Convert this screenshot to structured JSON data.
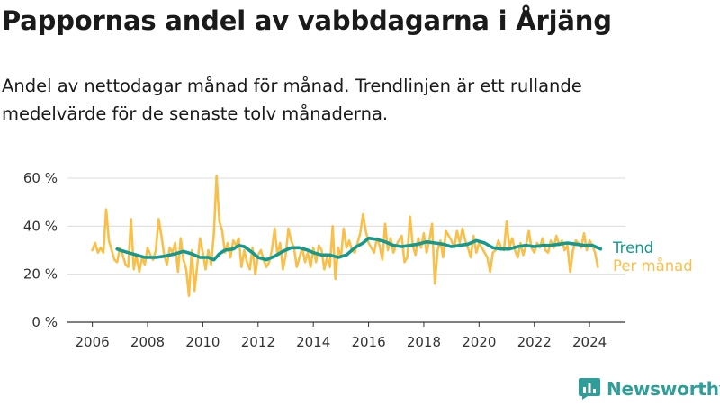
{
  "title": "Pappornas andel av vabbdagarna i Årjäng",
  "subtitle": "Andel av nettodagar månad för månad. Trendlinjen är ett rullande medelvärde för de senaste tolv månaderna.",
  "brand": {
    "name": "Newsworthy",
    "icon": "newsworthy-logo-icon",
    "color": "#2f9e99"
  },
  "chart_data": {
    "type": "line",
    "x_axis": {
      "range": [
        2005.1,
        2025.3
      ],
      "ticks": [
        2006,
        2008,
        2010,
        2012,
        2014,
        2016,
        2018,
        2020,
        2022,
        2024
      ],
      "tick_labels": [
        "2006",
        "2008",
        "2010",
        "2012",
        "2014",
        "2016",
        "2018",
        "2020",
        "2022",
        "2024"
      ]
    },
    "y_axis": {
      "range": [
        0,
        63
      ],
      "ticks": [
        0,
        20,
        40,
        60
      ],
      "tick_labels": [
        "0 %",
        "20 %",
        "40 %",
        "60 %"
      ]
    },
    "grid": true,
    "legend_placement": "right-end",
    "series": [
      {
        "name": "Trend",
        "color": "#14998f",
        "points": [
          [
            2006.9,
            30.5
          ],
          [
            2007.0,
            30
          ],
          [
            2007.3,
            29
          ],
          [
            2007.6,
            28
          ],
          [
            2007.9,
            27
          ],
          [
            2008.3,
            27
          ],
          [
            2008.6,
            27.5
          ],
          [
            2009.0,
            28.5
          ],
          [
            2009.3,
            29.5
          ],
          [
            2009.6,
            28.5
          ],
          [
            2009.9,
            27
          ],
          [
            2010.2,
            27
          ],
          [
            2010.4,
            26
          ],
          [
            2010.6,
            28.5
          ],
          [
            2010.8,
            30
          ],
          [
            2011.1,
            30.5
          ],
          [
            2011.3,
            32
          ],
          [
            2011.5,
            31.5
          ],
          [
            2011.8,
            29
          ],
          [
            2012.0,
            27
          ],
          [
            2012.3,
            26
          ],
          [
            2012.6,
            27.5
          ],
          [
            2012.9,
            29.5
          ],
          [
            2013.2,
            31
          ],
          [
            2013.5,
            31
          ],
          [
            2013.8,
            30
          ],
          [
            2014.0,
            29
          ],
          [
            2014.3,
            28
          ],
          [
            2014.6,
            28
          ],
          [
            2014.9,
            27
          ],
          [
            2015.2,
            28
          ],
          [
            2015.5,
            31
          ],
          [
            2015.8,
            33
          ],
          [
            2016.0,
            35
          ],
          [
            2016.3,
            34.5
          ],
          [
            2016.6,
            33.5
          ],
          [
            2016.9,
            32
          ],
          [
            2017.2,
            31.5
          ],
          [
            2017.5,
            32
          ],
          [
            2017.8,
            32.5
          ],
          [
            2018.1,
            33.5
          ],
          [
            2018.4,
            33
          ],
          [
            2018.7,
            32.5
          ],
          [
            2019.0,
            31.5
          ],
          [
            2019.3,
            32
          ],
          [
            2019.6,
            32.5
          ],
          [
            2019.9,
            34
          ],
          [
            2020.2,
            33
          ],
          [
            2020.5,
            31
          ],
          [
            2020.8,
            30.5
          ],
          [
            2021.1,
            30.5
          ],
          [
            2021.4,
            31.5
          ],
          [
            2021.7,
            32
          ],
          [
            2022.0,
            31.5
          ],
          [
            2022.3,
            32
          ],
          [
            2022.6,
            32
          ],
          [
            2022.9,
            32.5
          ],
          [
            2023.2,
            33
          ],
          [
            2023.5,
            32.5
          ],
          [
            2023.8,
            32
          ],
          [
            2024.1,
            32
          ],
          [
            2024.4,
            30.5
          ]
        ]
      },
      {
        "name": "Per månad",
        "color": "#f8c04a",
        "points": [
          [
            2006.0,
            30
          ],
          [
            2006.1,
            33
          ],
          [
            2006.2,
            29
          ],
          [
            2006.3,
            31
          ],
          [
            2006.4,
            29
          ],
          [
            2006.5,
            47
          ],
          [
            2006.6,
            34
          ],
          [
            2006.7,
            30
          ],
          [
            2006.8,
            26
          ],
          [
            2006.9,
            25
          ],
          [
            2007.0,
            31
          ],
          [
            2007.1,
            28
          ],
          [
            2007.2,
            24
          ],
          [
            2007.3,
            23
          ],
          [
            2007.4,
            43
          ],
          [
            2007.5,
            22
          ],
          [
            2007.6,
            28
          ],
          [
            2007.7,
            21
          ],
          [
            2007.8,
            27
          ],
          [
            2007.9,
            24
          ],
          [
            2008.0,
            31
          ],
          [
            2008.1,
            28
          ],
          [
            2008.2,
            26
          ],
          [
            2008.3,
            30
          ],
          [
            2008.4,
            43
          ],
          [
            2008.5,
            36
          ],
          [
            2008.6,
            28
          ],
          [
            2008.7,
            24
          ],
          [
            2008.8,
            31
          ],
          [
            2008.9,
            29
          ],
          [
            2009.0,
            33
          ],
          [
            2009.1,
            21
          ],
          [
            2009.2,
            35
          ],
          [
            2009.3,
            26
          ],
          [
            2009.4,
            22
          ],
          [
            2009.5,
            11
          ],
          [
            2009.6,
            30
          ],
          [
            2009.7,
            13
          ],
          [
            2009.8,
            24
          ],
          [
            2009.9,
            35
          ],
          [
            2010.0,
            29
          ],
          [
            2010.1,
            22
          ],
          [
            2010.2,
            30
          ],
          [
            2010.3,
            24
          ],
          [
            2010.4,
            37
          ],
          [
            2010.5,
            61
          ],
          [
            2010.6,
            42
          ],
          [
            2010.7,
            38
          ],
          [
            2010.8,
            29
          ],
          [
            2010.9,
            33
          ],
          [
            2011.0,
            27
          ],
          [
            2011.1,
            34
          ],
          [
            2011.2,
            32
          ],
          [
            2011.3,
            35
          ],
          [
            2011.4,
            23
          ],
          [
            2011.5,
            30
          ],
          [
            2011.6,
            25
          ],
          [
            2011.7,
            22
          ],
          [
            2011.8,
            31
          ],
          [
            2011.9,
            20
          ],
          [
            2012.0,
            28
          ],
          [
            2012.1,
            30
          ],
          [
            2012.2,
            26
          ],
          [
            2012.3,
            23
          ],
          [
            2012.4,
            25
          ],
          [
            2012.5,
            30
          ],
          [
            2012.6,
            39
          ],
          [
            2012.7,
            28
          ],
          [
            2012.8,
            33
          ],
          [
            2012.9,
            22
          ],
          [
            2013.0,
            28
          ],
          [
            2013.1,
            39
          ],
          [
            2013.2,
            34
          ],
          [
            2013.3,
            31
          ],
          [
            2013.4,
            23
          ],
          [
            2013.5,
            27
          ],
          [
            2013.6,
            31
          ],
          [
            2013.7,
            25
          ],
          [
            2013.8,
            29
          ],
          [
            2013.9,
            23
          ],
          [
            2014.0,
            31
          ],
          [
            2014.1,
            25
          ],
          [
            2014.2,
            32
          ],
          [
            2014.3,
            30
          ],
          [
            2014.4,
            22
          ],
          [
            2014.5,
            27
          ],
          [
            2014.6,
            23
          ],
          [
            2014.7,
            40
          ],
          [
            2014.8,
            18
          ],
          [
            2014.9,
            31
          ],
          [
            2015.0,
            27
          ],
          [
            2015.1,
            39
          ],
          [
            2015.2,
            31
          ],
          [
            2015.3,
            34
          ],
          [
            2015.4,
            30
          ],
          [
            2015.5,
            29
          ],
          [
            2015.6,
            33
          ],
          [
            2015.7,
            37
          ],
          [
            2015.8,
            45
          ],
          [
            2015.9,
            38
          ],
          [
            2016.0,
            33
          ],
          [
            2016.1,
            31
          ],
          [
            2016.2,
            29
          ],
          [
            2016.3,
            35
          ],
          [
            2016.4,
            32
          ],
          [
            2016.5,
            26
          ],
          [
            2016.6,
            41
          ],
          [
            2016.7,
            30
          ],
          [
            2016.8,
            35
          ],
          [
            2016.9,
            29
          ],
          [
            2017.0,
            32
          ],
          [
            2017.1,
            34
          ],
          [
            2017.2,
            36
          ],
          [
            2017.3,
            25
          ],
          [
            2017.4,
            27
          ],
          [
            2017.5,
            44
          ],
          [
            2017.6,
            32
          ],
          [
            2017.7,
            28
          ],
          [
            2017.8,
            35
          ],
          [
            2017.9,
            31
          ],
          [
            2018.0,
            37
          ],
          [
            2018.1,
            29
          ],
          [
            2018.2,
            34
          ],
          [
            2018.3,
            41
          ],
          [
            2018.4,
            16
          ],
          [
            2018.5,
            30
          ],
          [
            2018.6,
            34
          ],
          [
            2018.7,
            27
          ],
          [
            2018.8,
            38
          ],
          [
            2018.9,
            36
          ],
          [
            2019.0,
            34
          ],
          [
            2019.1,
            31
          ],
          [
            2019.2,
            38
          ],
          [
            2019.3,
            33
          ],
          [
            2019.4,
            39
          ],
          [
            2019.5,
            34
          ],
          [
            2019.6,
            31
          ],
          [
            2019.7,
            27
          ],
          [
            2019.8,
            36
          ],
          [
            2019.9,
            29
          ],
          [
            2020.0,
            33
          ],
          [
            2020.1,
            31
          ],
          [
            2020.2,
            29
          ],
          [
            2020.3,
            27
          ],
          [
            2020.4,
            21
          ],
          [
            2020.5,
            29
          ],
          [
            2020.6,
            30
          ],
          [
            2020.7,
            34
          ],
          [
            2020.8,
            31
          ],
          [
            2020.9,
            30
          ],
          [
            2021.0,
            42
          ],
          [
            2021.1,
            31
          ],
          [
            2021.2,
            35
          ],
          [
            2021.3,
            30
          ],
          [
            2021.4,
            27
          ],
          [
            2021.5,
            33
          ],
          [
            2021.6,
            28
          ],
          [
            2021.7,
            32
          ],
          [
            2021.8,
            38
          ],
          [
            2021.9,
            31
          ],
          [
            2022.0,
            29
          ],
          [
            2022.1,
            33
          ],
          [
            2022.2,
            31
          ],
          [
            2022.3,
            35
          ],
          [
            2022.4,
            30
          ],
          [
            2022.5,
            29
          ],
          [
            2022.6,
            34
          ],
          [
            2022.7,
            31
          ],
          [
            2022.8,
            36
          ],
          [
            2022.9,
            32
          ],
          [
            2023.0,
            34
          ],
          [
            2023.1,
            30
          ],
          [
            2023.2,
            32
          ],
          [
            2023.3,
            21
          ],
          [
            2023.4,
            30
          ],
          [
            2023.5,
            34
          ],
          [
            2023.6,
            33
          ],
          [
            2023.7,
            31
          ],
          [
            2023.8,
            37
          ],
          [
            2023.9,
            30
          ],
          [
            2024.0,
            34
          ],
          [
            2024.1,
            32
          ],
          [
            2024.2,
            29
          ],
          [
            2024.3,
            23
          ]
        ]
      }
    ]
  }
}
